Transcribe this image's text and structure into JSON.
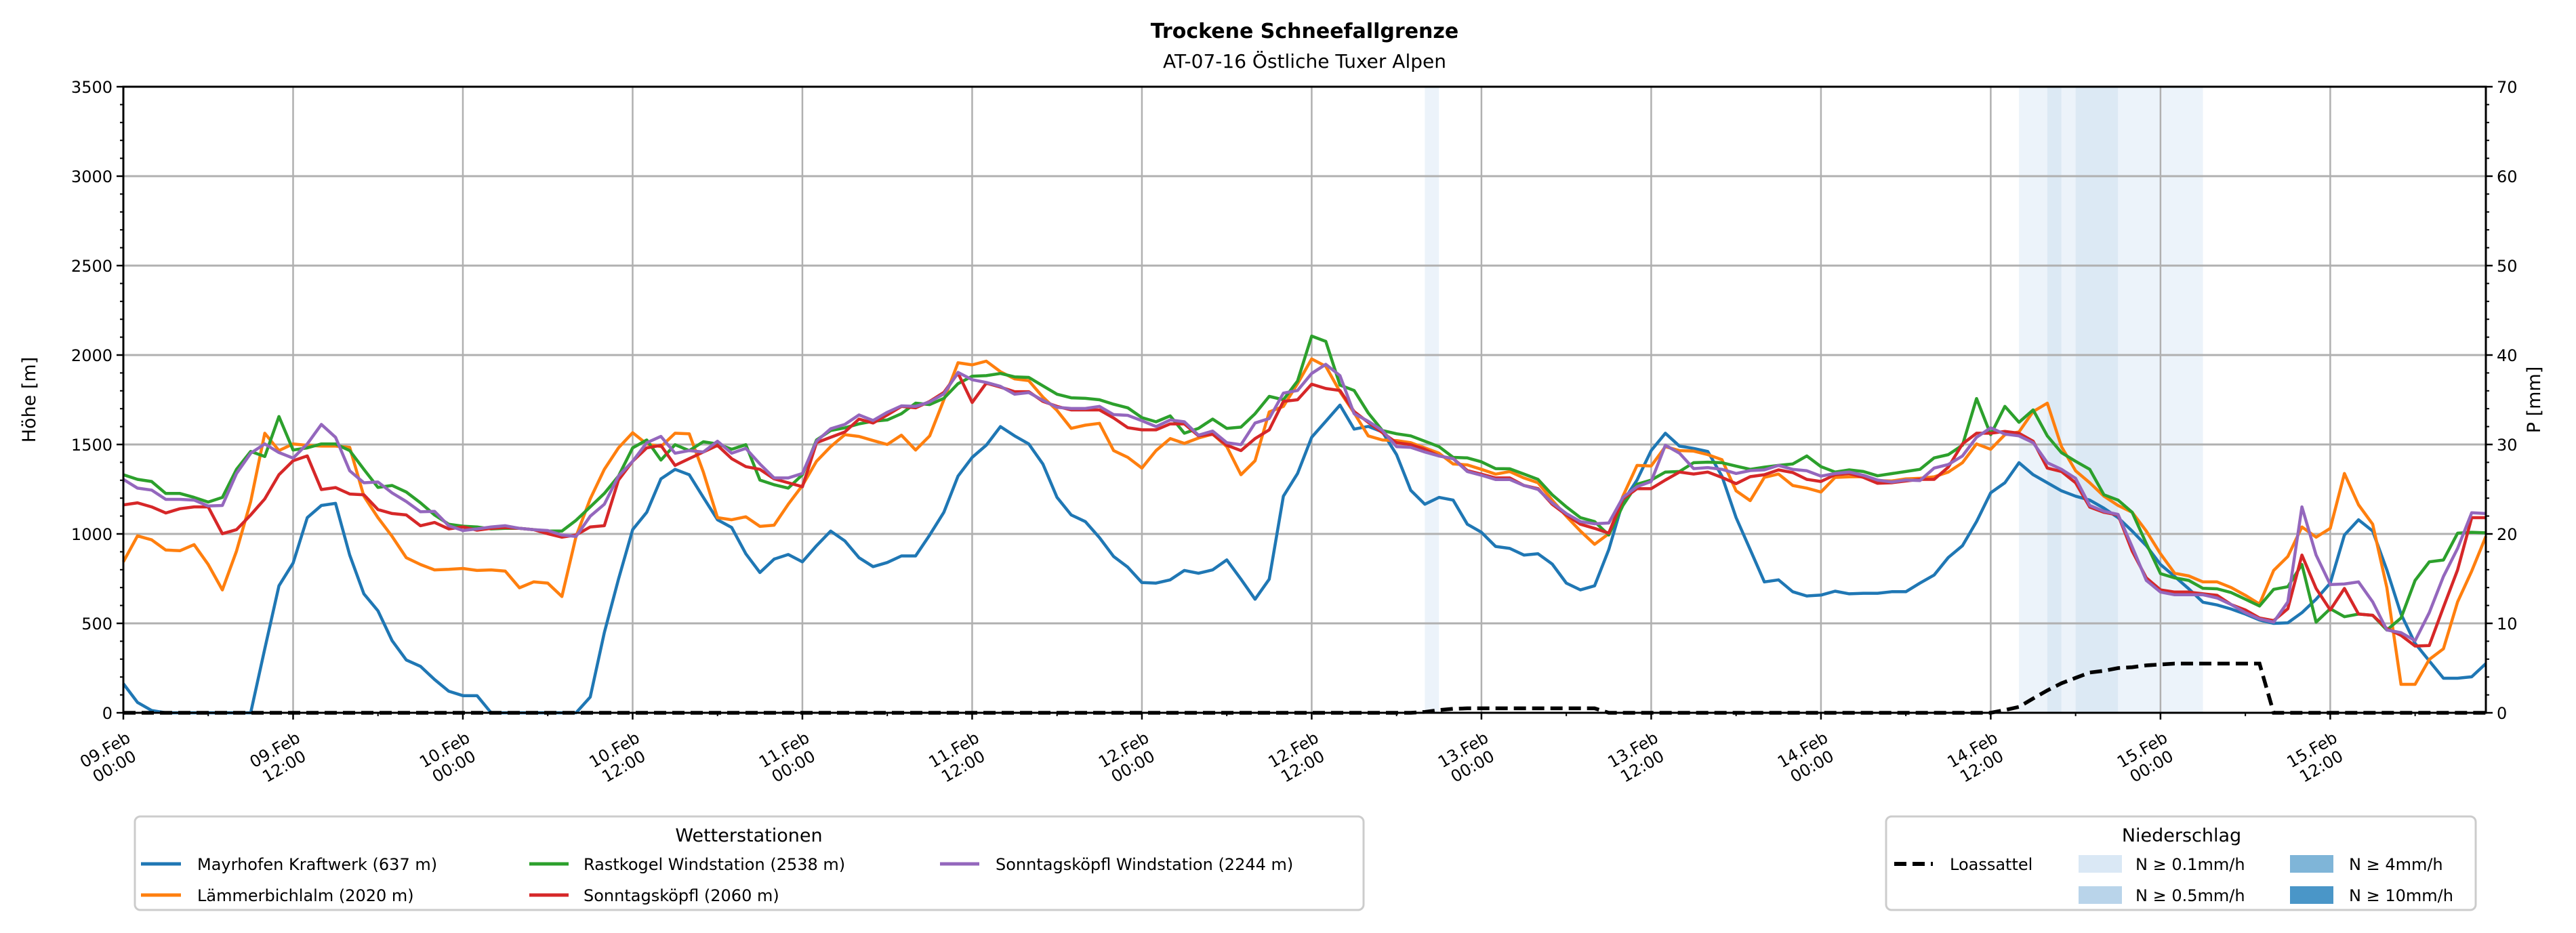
{
  "chart_data": {
    "type": "line",
    "title": "Trockene Schneefallgrenze",
    "subtitle": "AT-07-16 Östliche Tuxer Alpen",
    "ylabel": "Höhe [m]",
    "ylabel_right": "P [mm]",
    "ylim": [
      0,
      3500
    ],
    "ylim_right": [
      0,
      70
    ],
    "x_step_hours": 1,
    "x_max_hour": 167,
    "grid": true,
    "yticks": [
      "0",
      "500",
      "1000",
      "1500",
      "2000",
      "2500",
      "3000",
      "3500"
    ],
    "yticks_right": [
      "0",
      "10",
      "20",
      "30",
      "40",
      "50",
      "60",
      "70"
    ],
    "xticks": [
      {
        "hour": 0,
        "date": "09.Feb",
        "time": "00:00"
      },
      {
        "hour": 12,
        "date": "09.Feb",
        "time": "12:00"
      },
      {
        "hour": 24,
        "date": "10.Feb",
        "time": "00:00"
      },
      {
        "hour": 36,
        "date": "10.Feb",
        "time": "12:00"
      },
      {
        "hour": 48,
        "date": "11.Feb",
        "time": "00:00"
      },
      {
        "hour": 60,
        "date": "11.Feb",
        "time": "12:00"
      },
      {
        "hour": 72,
        "date": "12.Feb",
        "time": "00:00"
      },
      {
        "hour": 84,
        "date": "12.Feb",
        "time": "12:00"
      },
      {
        "hour": 96,
        "date": "13.Feb",
        "time": "00:00"
      },
      {
        "hour": 108,
        "date": "13.Feb",
        "time": "12:00"
      },
      {
        "hour": 120,
        "date": "14.Feb",
        "time": "00:00"
      },
      {
        "hour": 132,
        "date": "14.Feb",
        "time": "12:00"
      },
      {
        "hour": 144,
        "date": "15.Feb",
        "time": "00:00"
      },
      {
        "hour": 156,
        "date": "15.Feb",
        "time": "12:00"
      }
    ],
    "series": [
      {
        "name": "Mayrhofen Kraftwerk (637 m)",
        "color": "#1f77b4",
        "values": [
          163,
          58,
          13,
          0,
          0,
          0,
          0,
          0,
          0,
          0,
          358,
          710,
          837,
          1091,
          1159,
          1171,
          882,
          665,
          570,
          403,
          295,
          260,
          186,
          121,
          96,
          96,
          0,
          0,
          0,
          0,
          0,
          0,
          0,
          88,
          448,
          747,
          1024,
          1121,
          1308,
          1361,
          1331,
          1204,
          1079,
          1036,
          889,
          784,
          859,
          885,
          844,
          934,
          1016,
          961,
          867,
          817,
          840,
          877,
          877,
          994,
          1121,
          1323,
          1428,
          1496,
          1600,
          1548,
          1503,
          1391,
          1204,
          1106,
          1069,
          979,
          874,
          814,
          728,
          725,
          743,
          796,
          780,
          799,
          855,
          747,
          635,
          747,
          1211,
          1338,
          1540,
          1630,
          1720,
          1586,
          1601,
          1570,
          1443,
          1244,
          1166,
          1204,
          1189,
          1054,
          1009,
          930,
          919,
          882,
          889,
          832,
          725,
          687,
          710,
          912,
          1181,
          1301,
          1466,
          1563,
          1491,
          1478,
          1461,
          1323,
          1091,
          912,
          732,
          743,
          677,
          653,
          658,
          680,
          665,
          668,
          668,
          677,
          677,
          725,
          770,
          868,
          934,
          1069,
          1230,
          1286,
          1398,
          1331,
          1286,
          1241,
          1211,
          1189,
          1144,
          1091,
          1016,
          934,
          829,
          762,
          693,
          618,
          603,
          580,
          552,
          519,
          500,
          503,
          560,
          635,
          725,
          994,
          1079,
          1016,
          799,
          552,
          388,
          290,
          193,
          193,
          201,
          275
        ]
      },
      {
        "name": "Lämmerbichlalm (2020 m)",
        "color": "#ff7f0e",
        "values": [
          844,
          989,
          967,
          910,
          906,
          940,
          829,
          687,
          904,
          1181,
          1563,
          1466,
          1503,
          1495,
          1491,
          1491,
          1484,
          1211,
          1091,
          986,
          867,
          829,
          799,
          802,
          807,
          796,
          799,
          792,
          699,
          732,
          725,
          650,
          986,
          1196,
          1361,
          1481,
          1566,
          1503,
          1488,
          1563,
          1560,
          1346,
          1091,
          1079,
          1096,
          1042,
          1049,
          1166,
          1271,
          1406,
          1488,
          1555,
          1545,
          1522,
          1500,
          1552,
          1469,
          1548,
          1750,
          1957,
          1945,
          1966,
          1907,
          1867,
          1857,
          1765,
          1690,
          1590,
          1608,
          1618,
          1466,
          1428,
          1368,
          1466,
          1533,
          1506,
          1536,
          1558,
          1488,
          1331,
          1409,
          1682,
          1713,
          1840,
          1978,
          1937,
          1795,
          1676,
          1548,
          1525,
          1522,
          1510,
          1481,
          1451,
          1391,
          1386,
          1361,
          1334,
          1349,
          1313,
          1286,
          1189,
          1099,
          1016,
          942,
          1001,
          1211,
          1383,
          1380,
          1488,
          1466,
          1463,
          1443,
          1415,
          1241,
          1186,
          1316,
          1335,
          1271,
          1256,
          1234,
          1316,
          1319,
          1320,
          1298,
          1296,
          1308,
          1311,
          1319,
          1346,
          1398,
          1503,
          1473,
          1555,
          1570,
          1684,
          1731,
          1488,
          1353,
          1286,
          1211,
          1159,
          1121,
          1016,
          889,
          780,
          765,
          732,
          732,
          700,
          657,
          608,
          796,
          874,
          1039,
          982,
          1031,
          1338,
          1163,
          1054,
          700,
          159,
          159,
          298,
          358,
          620,
          792,
          986
        ]
      },
      {
        "name": "Rastkogel Windstation (2538 m)",
        "color": "#2ca02c",
        "values": [
          1331,
          1305,
          1293,
          1226,
          1226,
          1204,
          1178,
          1204,
          1361,
          1461,
          1433,
          1656,
          1469,
          1481,
          1503,
          1503,
          1466,
          1361,
          1260,
          1271,
          1234,
          1174,
          1106,
          1054,
          1043,
          1039,
          1028,
          1031,
          1031,
          1024,
          1016,
          1016,
          1076,
          1151,
          1226,
          1323,
          1481,
          1525,
          1413,
          1499,
          1466,
          1515,
          1503,
          1473,
          1499,
          1301,
          1275,
          1256,
          1331,
          1525,
          1578,
          1593,
          1615,
          1630,
          1637,
          1672,
          1731,
          1723,
          1758,
          1840,
          1882,
          1885,
          1897,
          1878,
          1875,
          1828,
          1781,
          1761,
          1758,
          1750,
          1725,
          1705,
          1650,
          1627,
          1660,
          1563,
          1590,
          1642,
          1590,
          1597,
          1672,
          1769,
          1750,
          1855,
          2106,
          2076,
          1832,
          1802,
          1676,
          1578,
          1560,
          1548,
          1518,
          1488,
          1428,
          1425,
          1403,
          1365,
          1364,
          1335,
          1305,
          1219,
          1151,
          1091,
          1069,
          994,
          1159,
          1278,
          1301,
          1346,
          1349,
          1398,
          1401,
          1398,
          1379,
          1361,
          1373,
          1383,
          1391,
          1436,
          1376,
          1346,
          1358,
          1349,
          1325,
          1337,
          1349,
          1361,
          1425,
          1443,
          1496,
          1757,
          1555,
          1713,
          1624,
          1693,
          1548,
          1454,
          1406,
          1361,
          1219,
          1189,
          1121,
          946,
          778,
          754,
          740,
          696,
          693,
          672,
          635,
          597,
          690,
          705,
          829,
          507,
          582,
          537,
          552,
          545,
          463,
          530,
          740,
          844,
          854,
          1004,
          1009,
          1006
        ]
      },
      {
        "name": "Sonntagsköpfl (2060 m)",
        "color": "#d62728",
        "values": [
          1162,
          1174,
          1151,
          1117,
          1141,
          1151,
          1151,
          1001,
          1024,
          1106,
          1196,
          1331,
          1409,
          1436,
          1248,
          1259,
          1223,
          1219,
          1136,
          1114,
          1106,
          1046,
          1064,
          1028,
          1039,
          1021,
          1031,
          1036,
          1031,
          1024,
          1001,
          982,
          994,
          1039,
          1046,
          1301,
          1406,
          1481,
          1495,
          1383,
          1421,
          1458,
          1495,
          1421,
          1376,
          1361,
          1308,
          1286,
          1264,
          1510,
          1540,
          1570,
          1642,
          1620,
          1665,
          1713,
          1705,
          1741,
          1791,
          1899,
          1735,
          1843,
          1821,
          1795,
          1795,
          1741,
          1713,
          1693,
          1693,
          1693,
          1648,
          1594,
          1582,
          1582,
          1615,
          1615,
          1548,
          1558,
          1496,
          1466,
          1533,
          1582,
          1741,
          1750,
          1837,
          1813,
          1802,
          1684,
          1624,
          1566,
          1510,
          1499,
          1473,
          1436,
          1421,
          1354,
          1334,
          1313,
          1313,
          1271,
          1253,
          1166,
          1106,
          1054,
          1031,
          1004,
          1196,
          1253,
          1253,
          1301,
          1346,
          1335,
          1346,
          1316,
          1281,
          1320,
          1331,
          1358,
          1343,
          1305,
          1293,
          1331,
          1337,
          1316,
          1283,
          1286,
          1296,
          1305,
          1305,
          1373,
          1503,
          1563,
          1563,
          1573,
          1563,
          1518,
          1368,
          1349,
          1286,
          1150,
          1121,
          1106,
          904,
          754,
          687,
          675,
          675,
          665,
          657,
          605,
          575,
          530,
          515,
          582,
          882,
          695,
          575,
          695,
          552,
          545,
          471,
          433,
          373,
          376,
          590,
          799,
          1091,
          1091
        ]
      },
      {
        "name": "Sonntagsköpfl Windstation (2244 m)",
        "color": "#9467bd",
        "values": [
          1305,
          1256,
          1245,
          1193,
          1193,
          1189,
          1156,
          1159,
          1338,
          1451,
          1503,
          1455,
          1424,
          1503,
          1612,
          1540,
          1353,
          1286,
          1290,
          1229,
          1181,
          1124,
          1126,
          1046,
          1019,
          1028,
          1039,
          1046,
          1031,
          1024,
          1019,
          994,
          986,
          1099,
          1166,
          1323,
          1406,
          1510,
          1545,
          1451,
          1466,
          1458,
          1518,
          1451,
          1478,
          1391,
          1313,
          1313,
          1338,
          1518,
          1588,
          1612,
          1665,
          1634,
          1680,
          1716,
          1713,
          1738,
          1783,
          1903,
          1862,
          1847,
          1825,
          1781,
          1790,
          1747,
          1708,
          1701,
          1701,
          1713,
          1667,
          1663,
          1633,
          1600,
          1637,
          1627,
          1552,
          1575,
          1510,
          1499,
          1620,
          1645,
          1787,
          1802,
          1897,
          1948,
          1885,
          1672,
          1630,
          1578,
          1488,
          1484,
          1458,
          1436,
          1421,
          1349,
          1328,
          1304,
          1304,
          1271,
          1249,
          1174,
          1114,
          1069,
          1057,
          1061,
          1204,
          1264,
          1293,
          1496,
          1451,
          1365,
          1371,
          1361,
          1338,
          1354,
          1358,
          1383,
          1361,
          1353,
          1323,
          1338,
          1346,
          1328,
          1301,
          1290,
          1301,
          1298,
          1368,
          1388,
          1436,
          1540,
          1593,
          1558,
          1548,
          1510,
          1398,
          1361,
          1311,
          1159,
          1126,
          1109,
          928,
          740,
          675,
          660,
          660,
          660,
          642,
          605,
          560,
          525,
          507,
          620,
          1151,
          882,
          717,
          720,
          732,
          620,
          463,
          448,
          403,
          560,
          762,
          919,
          1118,
          1114
        ]
      }
    ],
    "precip_series": {
      "name": "Loassattel",
      "axis": "right",
      "color": "#000000",
      "values": [
        0,
        0,
        0,
        0,
        0,
        0,
        0,
        0,
        0,
        0,
        0,
        0,
        0,
        0,
        0,
        0,
        0,
        0,
        0,
        0,
        0,
        0,
        0,
        0,
        0,
        0,
        0,
        0,
        0,
        0,
        0,
        0,
        0,
        0,
        0,
        0,
        0,
        0,
        0,
        0,
        0,
        0,
        0,
        0,
        0,
        0,
        0,
        0,
        0,
        0,
        0,
        0,
        0,
        0,
        0,
        0,
        0,
        0,
        0,
        0,
        0,
        0,
        0,
        0,
        0,
        0,
        0,
        0,
        0,
        0,
        0,
        0,
        0,
        0,
        0,
        0,
        0,
        0,
        0,
        0,
        0,
        0,
        0,
        0,
        0,
        0,
        0,
        0,
        0,
        0,
        0,
        0,
        0.1,
        0.3,
        0.45,
        0.5,
        0.5,
        0.5,
        0.5,
        0.5,
        0.5,
        0.5,
        0.5,
        0.5,
        0.5,
        0,
        0,
        0,
        0,
        0,
        0,
        0,
        0,
        0,
        0,
        0,
        0,
        0,
        0,
        0,
        0,
        0,
        0,
        0,
        0,
        0,
        0,
        0,
        0,
        0,
        0,
        0,
        0,
        0.3,
        0.66,
        1.6,
        2.5,
        3.3,
        3.9,
        4.5,
        4.7,
        5.0,
        5.1,
        5.3,
        5.4,
        5.5,
        5.5,
        5.5,
        5.5,
        5.5,
        5.5,
        5.5,
        0,
        0,
        0,
        0,
        0,
        0,
        0,
        0,
        0,
        0,
        0,
        0,
        0,
        0,
        0,
        0
      ]
    },
    "precip_bands": [
      {
        "start_hour": 92,
        "end_hour": 93,
        "class": 0
      },
      {
        "start_hour": 134,
        "end_hour": 136,
        "class": 0
      },
      {
        "start_hour": 136,
        "end_hour": 137,
        "class": 1
      },
      {
        "start_hour": 137,
        "end_hour": 138,
        "class": 0
      },
      {
        "start_hour": 138,
        "end_hour": 141,
        "class": 1
      },
      {
        "start_hour": 141,
        "end_hour": 147,
        "class": 0
      }
    ],
    "legend_stations": {
      "title": "Wetterstationen",
      "placement": "lower-left"
    },
    "legend_precip": {
      "title": "Niederschlag",
      "placement": "lower-right",
      "line_label": "Loassattel",
      "items": [
        {
          "label": "N ≥ 0.1mm/h",
          "color": "#dae8f5"
        },
        {
          "label": "N ≥ 0.5mm/h",
          "color": "#b9d4ea"
        },
        {
          "label": "N ≥ 4mm/h",
          "color": "#7fb5d8"
        },
        {
          "label": "N ≥ 10mm/h",
          "color": "#4a96c8"
        }
      ]
    }
  }
}
